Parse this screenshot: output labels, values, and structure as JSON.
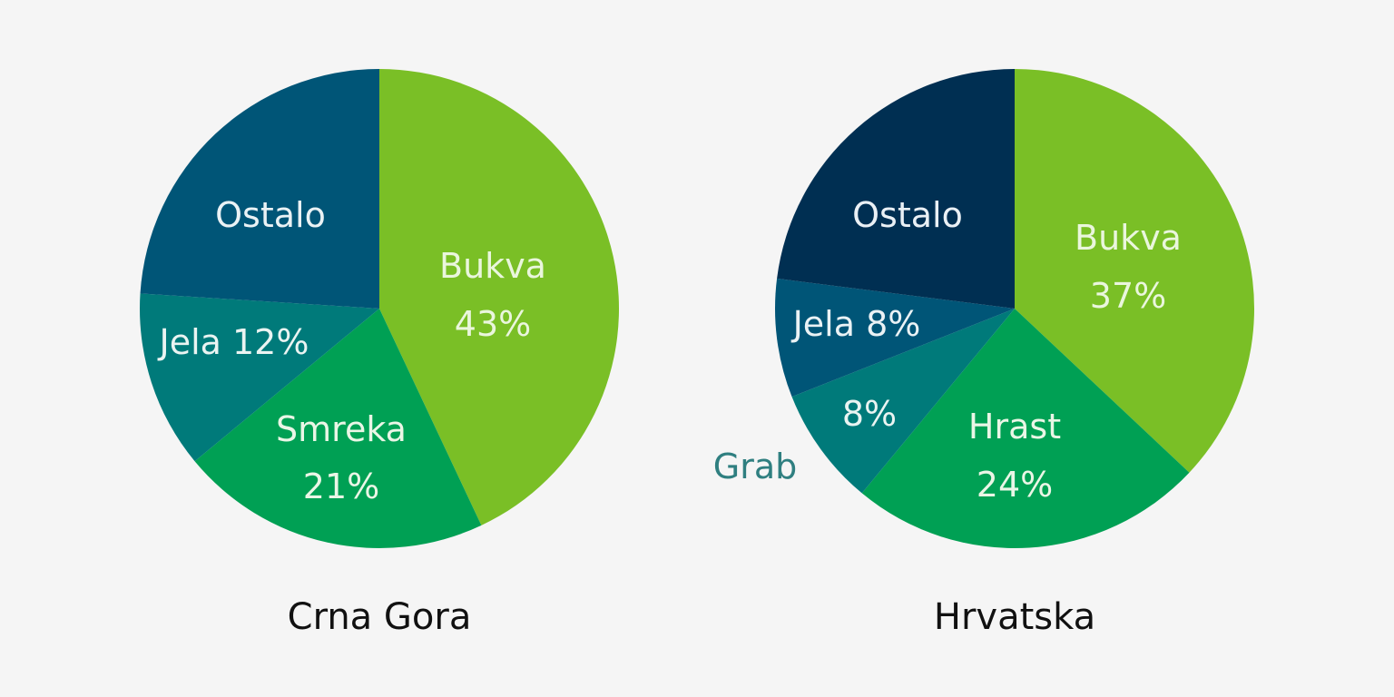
{
  "chart_data": [
    {
      "type": "pie",
      "title": "Crna Gora",
      "slices": [
        {
          "name": "Bukva",
          "value": 43,
          "value_label": "43%",
          "color": "#7ABF26",
          "label_color": "#EAF6DD",
          "label_mode": "stacked"
        },
        {
          "name": "Smreka",
          "value": 21,
          "value_label": "21%",
          "color": "#00A054",
          "label_color": "#EAF6E6",
          "label_mode": "stacked"
        },
        {
          "name": "Jela",
          "value": 12,
          "value_label": "12%",
          "color": "#007A7A",
          "label_color": "#EAF4F2",
          "label_mode": "inline"
        },
        {
          "name": "Ostalo",
          "value": 24,
          "value_label": "",
          "color": "#005577",
          "label_color": "#EAF2F5",
          "label_mode": "name-only"
        }
      ]
    },
    {
      "type": "pie",
      "title": "Hrvatska",
      "slices": [
        {
          "name": "Bukva",
          "value": 37,
          "value_label": "37%",
          "color": "#7ABF26",
          "label_color": "#EAF6DD",
          "label_mode": "stacked"
        },
        {
          "name": "Hrast",
          "value": 24,
          "value_label": "24%",
          "color": "#00A054",
          "label_color": "#EAF6E6",
          "label_mode": "stacked"
        },
        {
          "name": "Grab",
          "value": 8,
          "value_label": "8%",
          "color": "#007A7A",
          "label_color": "#EAF4F2",
          "label_mode": "split-outside",
          "outside_color": "#2F7F80"
        },
        {
          "name": "Jela",
          "value": 8,
          "value_label": "8%",
          "color": "#005577",
          "label_color": "#EAF2F5",
          "label_mode": "inline"
        },
        {
          "name": "Ostalo",
          "value": 23,
          "value_label": "",
          "color": "#002F52",
          "label_color": "#EAF0F5",
          "label_mode": "name-only"
        }
      ]
    }
  ]
}
